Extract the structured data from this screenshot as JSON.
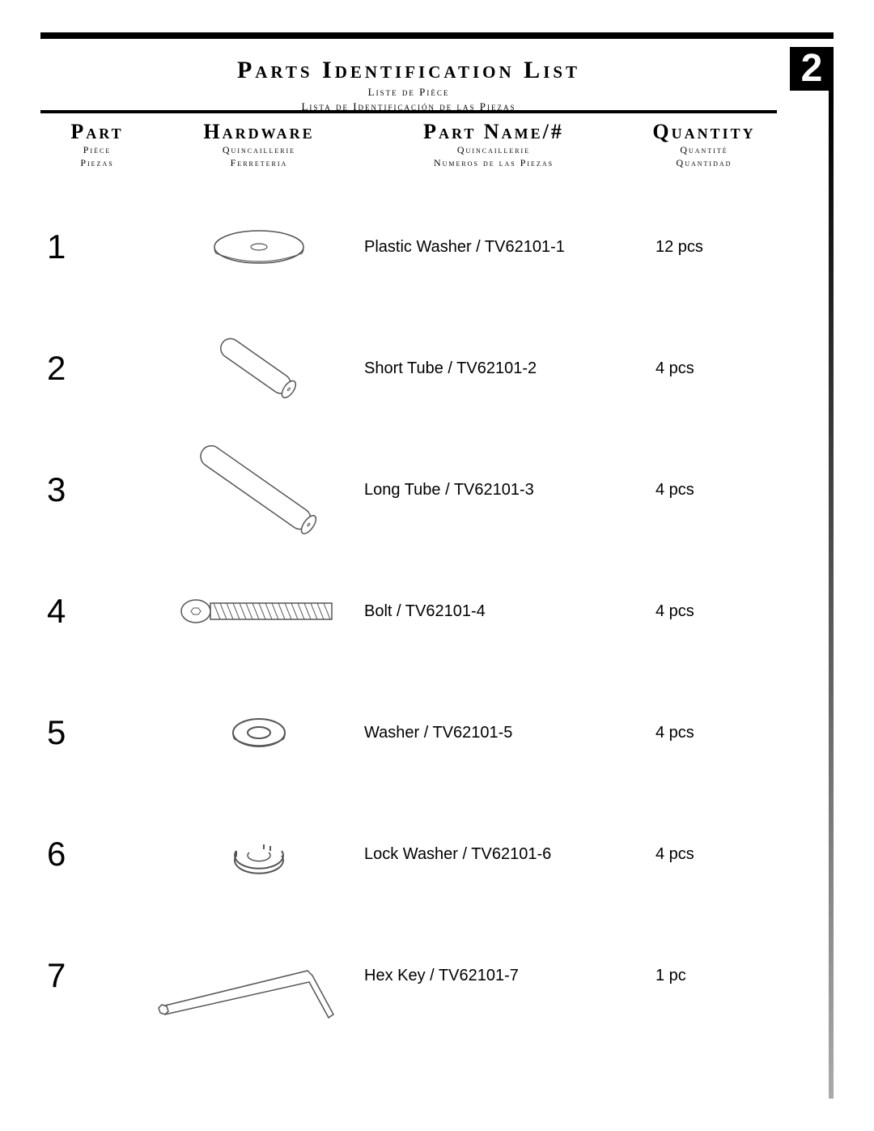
{
  "page_number": "2",
  "title": {
    "main": "Parts  Identification List",
    "sub1": "Liste de Pièce",
    "sub2": "Lista de Identificación de las Piezas"
  },
  "columns": {
    "part": {
      "main": "Part",
      "sub1": "Pièce",
      "sub2": "Piezas"
    },
    "hw": {
      "main": "Hardware",
      "sub1": "Quincaillerie",
      "sub2": "Ferreteria"
    },
    "name": {
      "main": "Part Name/#",
      "sub1": "Quincaillerie",
      "sub2": "Numeros de las Piezas"
    },
    "qty": {
      "main": "Quantity",
      "sub1": "Quantité",
      "sub2": "Quantidad"
    }
  },
  "rows": [
    {
      "num": "1",
      "icon": "washer-plastic",
      "name": "Plastic Washer / TV62101-1",
      "qty": "12 pcs"
    },
    {
      "num": "2",
      "icon": "tube-short",
      "name": "Short Tube / TV62101-2",
      "qty": "4 pcs"
    },
    {
      "num": "3",
      "icon": "tube-long",
      "name": "Long Tube / TV62101-3",
      "qty": "4 pcs"
    },
    {
      "num": "4",
      "icon": "bolt",
      "name": "Bolt / TV62101-4",
      "qty": "4 pcs"
    },
    {
      "num": "5",
      "icon": "washer-flat",
      "name": "Washer / TV62101-5",
      "qty": "4 pcs"
    },
    {
      "num": "6",
      "icon": "washer-lock",
      "name": "Lock Washer / TV62101-6",
      "qty": "4 pcs"
    },
    {
      "num": "7",
      "icon": "hex-key",
      "name": "Hex Key / TV62101-7",
      "qty": "1 pc"
    }
  ],
  "style": {
    "page_bg": "#ffffff",
    "ink": "#000000",
    "stroke": "#555555",
    "title_fontsize": 30,
    "colhead_fontsize": 26,
    "row_num_fontsize": 42,
    "row_text_fontsize": 20
  }
}
